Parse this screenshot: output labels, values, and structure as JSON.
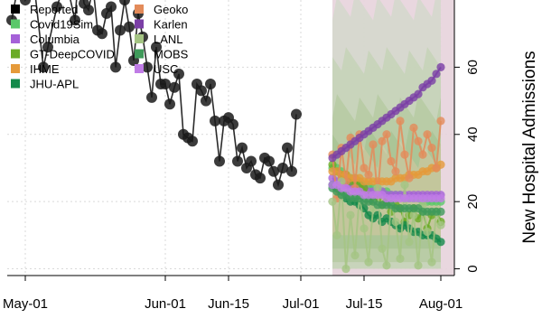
{
  "chart_data": {
    "type": "line",
    "title": "",
    "xlabel": "",
    "ylabel": "New Hospital Admissions",
    "x_ticks": [
      "May-01",
      "Jun-01",
      "Jun-15",
      "Jul-01",
      "Jul-15",
      "Aug-01"
    ],
    "y_ticks": [
      0,
      20,
      40,
      60
    ],
    "ylim": [
      -2,
      80
    ],
    "grid": true,
    "legend_position": "top-left",
    "forecast_start": "2020-07-08",
    "x_start": "2020-04-27",
    "x_end": "2020-08-04",
    "reported": {
      "name": "Reported",
      "x": [
        "2020-04-28",
        "2020-04-30",
        "2020-05-01",
        "2020-05-03",
        "2020-05-05",
        "2020-05-06",
        "2020-05-08",
        "2020-05-10",
        "2020-05-12",
        "2020-05-13",
        "2020-05-14",
        "2020-05-15",
        "2020-05-16",
        "2020-05-17",
        "2020-05-18",
        "2020-05-19",
        "2020-05-20",
        "2020-05-21",
        "2020-05-22",
        "2020-05-23",
        "2020-05-24",
        "2020-05-25",
        "2020-05-26",
        "2020-05-27",
        "2020-05-28",
        "2020-05-29",
        "2020-05-30",
        "2020-05-31",
        "2020-06-01",
        "2020-06-02",
        "2020-06-03",
        "2020-06-04",
        "2020-06-05",
        "2020-06-06",
        "2020-06-07",
        "2020-06-08",
        "2020-06-09",
        "2020-06-10",
        "2020-06-11",
        "2020-06-12",
        "2020-06-13",
        "2020-06-14",
        "2020-06-15",
        "2020-06-16",
        "2020-06-17",
        "2020-06-18",
        "2020-06-19",
        "2020-06-20",
        "2020-06-21",
        "2020-06-22",
        "2020-06-23",
        "2020-06-24",
        "2020-06-25",
        "2020-06-26",
        "2020-06-27",
        "2020-06-28",
        "2020-06-29",
        "2020-06-30"
      ],
      "y": [
        74,
        89,
        80,
        84,
        60,
        66,
        78,
        86,
        74,
        92,
        79,
        77,
        84,
        71,
        70,
        76,
        78,
        60,
        71,
        80,
        72,
        62,
        76,
        69,
        60,
        51,
        66,
        55,
        55,
        49,
        54,
        58,
        40,
        39,
        38,
        55,
        53,
        50,
        55,
        44,
        32,
        44,
        45,
        43,
        32,
        36,
        30,
        32,
        28,
        27,
        33,
        32,
        29,
        25,
        30,
        36,
        29,
        46
      ]
    },
    "series": [
      {
        "name": "Covid19Sim",
        "color": "#5ac86a",
        "values": [
          30,
          30,
          29,
          28,
          27,
          27,
          26,
          25,
          25,
          24,
          24,
          23,
          23,
          22,
          22,
          22,
          21,
          21,
          21,
          21,
          20,
          20,
          20,
          20,
          20
        ]
      },
      {
        "name": "Columbia",
        "color": "#a561d8",
        "values": [
          27,
          26,
          26,
          25,
          25,
          24,
          24,
          24,
          23,
          23,
          23,
          23,
          22,
          22,
          22,
          22,
          22,
          22,
          22,
          22,
          22,
          22,
          22,
          22,
          22
        ]
      },
      {
        "name": "GT-DeepCOVID",
        "color": "#6aab26",
        "values": [
          31,
          29,
          28,
          28,
          26,
          26,
          25,
          24,
          22,
          20,
          21,
          19,
          20,
          17,
          19,
          18,
          14,
          16,
          18,
          15,
          17,
          12,
          16,
          17,
          14
        ]
      },
      {
        "name": "IHME",
        "color": "#e59a3a",
        "values": [
          29,
          29,
          28,
          28,
          27,
          27,
          27,
          26,
          26,
          26,
          26,
          26,
          26,
          26,
          27,
          27,
          27,
          28,
          28,
          28,
          29,
          29,
          30,
          30,
          31
        ]
      },
      {
        "name": "JHU-APL",
        "color": "#148a4b",
        "values": [
          25,
          24,
          22,
          21,
          20,
          20,
          19,
          18,
          16,
          15,
          16,
          14,
          15,
          14,
          13,
          12,
          13,
          12,
          11,
          11,
          10,
          10,
          10,
          9,
          8
        ]
      },
      {
        "name": "Geoko",
        "color": "#e38b5a",
        "values": [
          34,
          21,
          36,
          26,
          39,
          24,
          40,
          30,
          28,
          37,
          22,
          38,
          40,
          32,
          29,
          44,
          34,
          27,
          42,
          38,
          34,
          40,
          36,
          30,
          44
        ]
      },
      {
        "name": "Karlen",
        "color": "#7b3fa6",
        "values": [
          33,
          34,
          35,
          36,
          37,
          38,
          39,
          40,
          41,
          42,
          43,
          44,
          45,
          46,
          47,
          48,
          49,
          50,
          51,
          52,
          54,
          55,
          56,
          58,
          60
        ]
      },
      {
        "name": "LANL",
        "color": "#a4c483",
        "values": [
          20,
          10,
          26,
          0,
          16,
          4,
          22,
          12,
          2,
          18,
          24,
          6,
          1,
          20,
          14,
          3,
          25,
          8,
          16,
          1,
          19,
          11,
          2,
          17,
          13
        ]
      },
      {
        "name": "MOBS",
        "color": "#3f9a5a",
        "values": [
          24,
          23,
          22,
          22,
          21,
          21,
          21,
          20,
          20,
          20,
          19,
          19,
          19,
          19,
          18,
          18,
          18,
          18,
          18,
          18,
          17,
          17,
          17,
          17,
          17
        ]
      },
      {
        "name": "USC",
        "color": "#c07ce6",
        "values": [
          25,
          25,
          24,
          24,
          23,
          23,
          23,
          22,
          22,
          22,
          22,
          22,
          21,
          21,
          21,
          21,
          21,
          21,
          21,
          21,
          21,
          21,
          21,
          21,
          21
        ]
      }
    ],
    "legend": [
      {
        "label": "Reported",
        "color": "#000000"
      },
      {
        "label": "Covid19Sim",
        "color": "#5ac86a"
      },
      {
        "label": "Columbia",
        "color": "#a561d8"
      },
      {
        "label": "GT-DeepCOVID",
        "color": "#6aab26"
      },
      {
        "label": "IHME",
        "color": "#e59a3a"
      },
      {
        "label": "JHU-APL",
        "color": "#148a4b"
      },
      {
        "label": "Geoko",
        "color": "#e38b5a"
      },
      {
        "label": "Karlen",
        "color": "#7b3fa6"
      },
      {
        "label": "LANL",
        "color": "#a4c483"
      },
      {
        "label": "MOBS",
        "color": "#3f9a5a"
      },
      {
        "label": "USC",
        "color": "#c07ce6"
      }
    ]
  }
}
